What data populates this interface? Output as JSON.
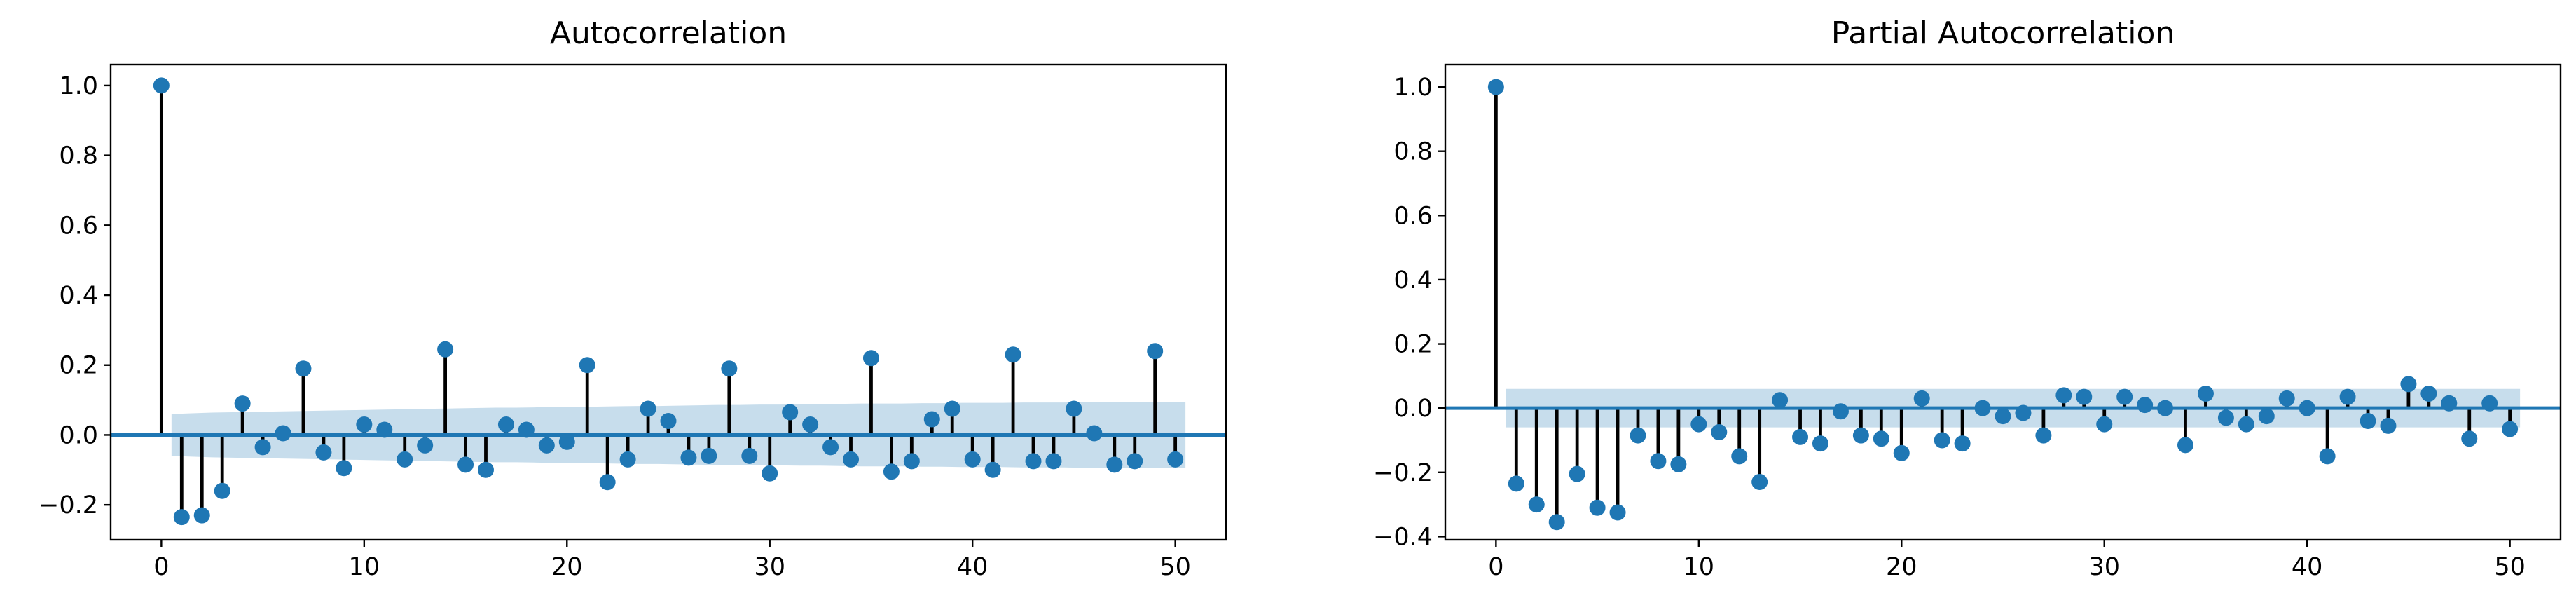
{
  "chart_data": [
    {
      "type": "stem",
      "title": "Autocorrelation",
      "xlabel": "",
      "ylabel": "",
      "xlim": [
        -2.5,
        52.5
      ],
      "ylim": [
        -0.3,
        1.06
      ],
      "xticks": [
        0,
        10,
        20,
        30,
        40,
        50
      ],
      "yticks": [
        -0.2,
        0.0,
        0.2,
        0.4,
        0.6,
        0.8,
        1.0
      ],
      "ytick_labels": [
        "−0.2",
        "0.0",
        "0.2",
        "0.4",
        "0.6",
        "0.8",
        "1.0"
      ],
      "lags": [
        0,
        1,
        2,
        3,
        4,
        5,
        6,
        7,
        8,
        9,
        10,
        11,
        12,
        13,
        14,
        15,
        16,
        17,
        18,
        19,
        20,
        21,
        22,
        23,
        24,
        25,
        26,
        27,
        28,
        29,
        30,
        31,
        32,
        33,
        34,
        35,
        36,
        37,
        38,
        39,
        40,
        41,
        42,
        43,
        44,
        45,
        46,
        47,
        48,
        49,
        50
      ],
      "values": [
        1.0,
        -0.235,
        -0.23,
        -0.16,
        0.09,
        -0.035,
        0.005,
        0.19,
        -0.05,
        -0.095,
        0.03,
        0.015,
        -0.07,
        -0.03,
        0.245,
        -0.085,
        -0.1,
        0.03,
        0.015,
        -0.03,
        -0.02,
        0.2,
        -0.135,
        -0.07,
        0.075,
        0.04,
        -0.065,
        -0.06,
        0.19,
        -0.06,
        -0.11,
        0.065,
        0.03,
        -0.035,
        -0.07,
        0.22,
        -0.105,
        -0.075,
        0.045,
        0.075,
        -0.07,
        -0.1,
        0.23,
        -0.075,
        -0.075,
        0.075,
        0.005,
        -0.085,
        -0.075,
        0.24,
        -0.07
      ],
      "conf_band": [
        0.055,
        0.06,
        0.062,
        0.064,
        0.065,
        0.066,
        0.067,
        0.068,
        0.069,
        0.07,
        0.071,
        0.072,
        0.073,
        0.074,
        0.075,
        0.076,
        0.077,
        0.078,
        0.078,
        0.079,
        0.08,
        0.081,
        0.081,
        0.082,
        0.083,
        0.083,
        0.084,
        0.085,
        0.086,
        0.086,
        0.087,
        0.087,
        0.088,
        0.088,
        0.089,
        0.09,
        0.09,
        0.09,
        0.091,
        0.091,
        0.092,
        0.092,
        0.092,
        0.093,
        0.093,
        0.093,
        0.094,
        0.094,
        0.094,
        0.095,
        0.095
      ],
      "colors": {
        "marker": "#1f77b4",
        "stem": "#000000",
        "band": "#1f77b4"
      }
    },
    {
      "type": "stem",
      "title": "Partial Autocorrelation",
      "xlabel": "",
      "ylabel": "",
      "xlim": [
        -2.5,
        52.5
      ],
      "ylim": [
        -0.41,
        1.07
      ],
      "xticks": [
        0,
        10,
        20,
        30,
        40,
        50
      ],
      "yticks": [
        -0.4,
        -0.2,
        0.0,
        0.2,
        0.4,
        0.6,
        0.8,
        1.0
      ],
      "ytick_labels": [
        "−0.4",
        "−0.2",
        "0.0",
        "0.2",
        "0.4",
        "0.6",
        "0.8",
        "1.0"
      ],
      "lags": [
        0,
        1,
        2,
        3,
        4,
        5,
        6,
        7,
        8,
        9,
        10,
        11,
        12,
        13,
        14,
        15,
        16,
        17,
        18,
        19,
        20,
        21,
        22,
        23,
        24,
        25,
        26,
        27,
        28,
        29,
        30,
        31,
        32,
        33,
        34,
        35,
        36,
        37,
        38,
        39,
        40,
        41,
        42,
        43,
        44,
        45,
        46,
        47,
        48,
        49,
        50
      ],
      "values": [
        1.0,
        -0.235,
        -0.3,
        -0.355,
        -0.205,
        -0.31,
        -0.325,
        -0.085,
        -0.165,
        -0.175,
        -0.05,
        -0.075,
        -0.15,
        -0.23,
        0.025,
        -0.09,
        -0.11,
        -0.01,
        -0.085,
        -0.095,
        -0.14,
        0.03,
        -0.1,
        -0.11,
        0.0,
        -0.025,
        -0.015,
        -0.085,
        0.04,
        0.035,
        -0.05,
        0.035,
        0.01,
        0.0,
        -0.115,
        0.045,
        -0.03,
        -0.05,
        -0.025,
        0.03,
        0.0,
        -0.15,
        0.035,
        -0.04,
        -0.055,
        0.075,
        0.045,
        0.015,
        -0.095,
        0.015,
        -0.065
      ],
      "conf_band": [
        0.06,
        0.06,
        0.06,
        0.06,
        0.06,
        0.06,
        0.06,
        0.06,
        0.06,
        0.06,
        0.06,
        0.06,
        0.06,
        0.06,
        0.06,
        0.06,
        0.06,
        0.06,
        0.06,
        0.06,
        0.06,
        0.06,
        0.06,
        0.06,
        0.06,
        0.06,
        0.06,
        0.06,
        0.06,
        0.06,
        0.06,
        0.06,
        0.06,
        0.06,
        0.06,
        0.06,
        0.06,
        0.06,
        0.06,
        0.06,
        0.06,
        0.06,
        0.06,
        0.06,
        0.06,
        0.06,
        0.06,
        0.06,
        0.06,
        0.06,
        0.06
      ],
      "colors": {
        "marker": "#1f77b4",
        "stem": "#000000",
        "band": "#1f77b4"
      }
    }
  ]
}
